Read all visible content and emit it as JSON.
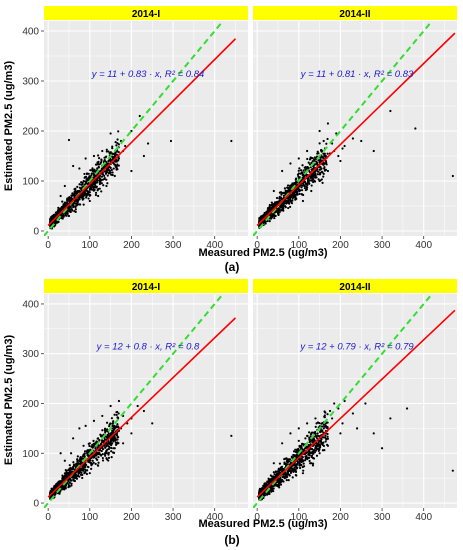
{
  "figure": {
    "panels": [
      {
        "label": "(a)",
        "xlabel": "Measured PM2.5 (ug/m3)",
        "ylabel": "Estimated PM2.5 (ug/m3)",
        "facets": [
          {
            "strip": "2014-I",
            "equation": "y = 11 + 0.83 · x,  R² = 0.84"
          },
          {
            "strip": "2014-II",
            "equation": "y = 11 + 0.81 · x,  R² = 0.83"
          }
        ]
      },
      {
        "label": "(b)",
        "xlabel": "Measured PM2.5 (ug/m3)",
        "ylabel": "Estimated PM2.5 (ug/m3)",
        "facets": [
          {
            "strip": "2014-I",
            "equation": "y = 12 + 0.8 · x,  R² = 0.8"
          },
          {
            "strip": "2014-II",
            "equation": "y = 12 + 0.79 · x,  R² = 0.79"
          }
        ]
      }
    ]
  },
  "colors": {
    "panel_bg": "#ebebeb",
    "grid": "#ffffff",
    "strip_bg": "#ffff00",
    "points": "#000000",
    "fit_line": "#ff0000",
    "identity_line": "#33dd33",
    "equation_text": "#1a1ad0"
  },
  "chart_data": [
    {
      "type": "scatter",
      "panel": "(a)",
      "facet": "2014-I",
      "xlabel": "Measured PM2.5 (ug/m3)",
      "ylabel": "Estimated PM2.5 (ug/m3)",
      "xlim": [
        -10,
        480
      ],
      "ylim": [
        -10,
        420
      ],
      "xticks": [
        0,
        100,
        200,
        300,
        400
      ],
      "yticks": [
        0,
        100,
        200,
        300,
        400
      ],
      "fit": {
        "intercept": 11,
        "slope": 0.83,
        "r2": 0.84,
        "x_range": [
          0,
          450
        ]
      },
      "identity_line": true,
      "points": [
        [
          20,
          22
        ],
        [
          30,
          35
        ],
        [
          45,
          40
        ],
        [
          55,
          58
        ],
        [
          60,
          48
        ],
        [
          70,
          75
        ],
        [
          80,
          70
        ],
        [
          90,
          82
        ],
        [
          100,
          92
        ],
        [
          110,
          100
        ],
        [
          120,
          112
        ],
        [
          130,
          118
        ],
        [
          140,
          125
        ],
        [
          150,
          140
        ],
        [
          160,
          150
        ],
        [
          170,
          145
        ],
        [
          180,
          160
        ],
        [
          60,
          130
        ],
        [
          75,
          125
        ],
        [
          90,
          145
        ],
        [
          110,
          150
        ],
        [
          130,
          160
        ],
        [
          150,
          195
        ],
        [
          200,
          200
        ],
        [
          220,
          230
        ],
        [
          240,
          175
        ],
        [
          175,
          180
        ],
        [
          50,
          182
        ],
        [
          295,
          180
        ],
        [
          440,
          180
        ],
        [
          30,
          70
        ],
        [
          40,
          90
        ],
        [
          100,
          60
        ],
        [
          120,
          70
        ],
        [
          140,
          90
        ],
        [
          160,
          110
        ],
        [
          200,
          120
        ],
        [
          230,
          150
        ],
        [
          15,
          10
        ],
        [
          25,
          18
        ],
        [
          35,
          25
        ],
        [
          50,
          30
        ],
        [
          65,
          55
        ],
        [
          85,
          65
        ],
        [
          95,
          105
        ],
        [
          105,
          115
        ],
        [
          125,
          105
        ],
        [
          145,
          135
        ],
        [
          165,
          130
        ],
        [
          185,
          170
        ]
      ],
      "grid": true
    },
    {
      "type": "scatter",
      "panel": "(a)",
      "facet": "2014-II",
      "xlabel": "Measured PM2.5 (ug/m3)",
      "ylabel": "Estimated PM2.5 (ug/m3)",
      "xlim": [
        -10,
        480
      ],
      "ylim": [
        -10,
        420
      ],
      "xticks": [
        0,
        100,
        200,
        300,
        400
      ],
      "yticks": [
        0,
        100,
        200,
        300,
        400
      ],
      "fit": {
        "intercept": 11,
        "slope": 0.81,
        "r2": 0.83,
        "x_range": [
          0,
          475
        ]
      },
      "identity_line": true,
      "points": [
        [
          20,
          25
        ],
        [
          30,
          30
        ],
        [
          45,
          42
        ],
        [
          55,
          50
        ],
        [
          65,
          60
        ],
        [
          75,
          68
        ],
        [
          85,
          80
        ],
        [
          95,
          90
        ],
        [
          105,
          95
        ],
        [
          115,
          105
        ],
        [
          125,
          110
        ],
        [
          135,
          120
        ],
        [
          145,
          130
        ],
        [
          155,
          140
        ],
        [
          165,
          150
        ],
        [
          175,
          155
        ],
        [
          185,
          160
        ],
        [
          195,
          150
        ],
        [
          210,
          170
        ],
        [
          230,
          185
        ],
        [
          250,
          180
        ],
        [
          280,
          160
        ],
        [
          320,
          240
        ],
        [
          380,
          205
        ],
        [
          470,
          110
        ],
        [
          150,
          200
        ],
        [
          170,
          215
        ],
        [
          190,
          195
        ],
        [
          60,
          120
        ],
        [
          80,
          135
        ],
        [
          100,
          145
        ],
        [
          120,
          160
        ],
        [
          40,
          80
        ],
        [
          110,
          60
        ],
        [
          130,
          80
        ],
        [
          150,
          100
        ],
        [
          170,
          120
        ],
        [
          200,
          140
        ],
        [
          15,
          12
        ],
        [
          25,
          20
        ],
        [
          35,
          28
        ],
        [
          50,
          35
        ],
        [
          70,
          55
        ],
        [
          90,
          70
        ],
        [
          100,
          115
        ],
        [
          120,
          125
        ],
        [
          140,
          115
        ],
        [
          160,
          145
        ],
        [
          180,
          175
        ],
        [
          205,
          165
        ]
      ],
      "grid": true
    },
    {
      "type": "scatter",
      "panel": "(b)",
      "facet": "2014-I",
      "xlabel": "Measured PM2.5 (ug/m3)",
      "ylabel": "Estimated PM2.5 (ug/m3)",
      "xlim": [
        -10,
        480
      ],
      "ylim": [
        -10,
        420
      ],
      "xticks": [
        0,
        100,
        200,
        300,
        400
      ],
      "yticks": [
        0,
        100,
        200,
        300,
        400
      ],
      "fit": {
        "intercept": 12,
        "slope": 0.8,
        "r2": 0.8,
        "x_range": [
          0,
          450
        ]
      },
      "identity_line": true,
      "points": [
        [
          20,
          25
        ],
        [
          30,
          32
        ],
        [
          45,
          40
        ],
        [
          55,
          55
        ],
        [
          65,
          62
        ],
        [
          75,
          70
        ],
        [
          85,
          78
        ],
        [
          95,
          88
        ],
        [
          105,
          95
        ],
        [
          115,
          100
        ],
        [
          125,
          110
        ],
        [
          135,
          115
        ],
        [
          145,
          125
        ],
        [
          155,
          135
        ],
        [
          165,
          140
        ],
        [
          175,
          150
        ],
        [
          190,
          160
        ],
        [
          200,
          170
        ],
        [
          215,
          195
        ],
        [
          230,
          185
        ],
        [
          250,
          160
        ],
        [
          440,
          135
        ],
        [
          60,
          130
        ],
        [
          75,
          150
        ],
        [
          90,
          155
        ],
        [
          110,
          165
        ],
        [
          130,
          175
        ],
        [
          150,
          195
        ],
        [
          170,
          205
        ],
        [
          40,
          85
        ],
        [
          30,
          100
        ],
        [
          100,
          60
        ],
        [
          120,
          75
        ],
        [
          140,
          90
        ],
        [
          160,
          110
        ],
        [
          180,
          120
        ],
        [
          15,
          12
        ],
        [
          25,
          20
        ],
        [
          35,
          28
        ],
        [
          50,
          35
        ],
        [
          70,
          55
        ],
        [
          90,
          65
        ],
        [
          100,
          120
        ],
        [
          120,
          130
        ],
        [
          140,
          105
        ],
        [
          160,
          150
        ],
        [
          180,
          175
        ],
        [
          200,
          140
        ],
        [
          55,
          100
        ],
        [
          85,
          115
        ]
      ],
      "grid": true
    },
    {
      "type": "scatter",
      "panel": "(b)",
      "facet": "2014-II",
      "xlabel": "Measured PM2.5 (ug/m3)",
      "ylabel": "Estimated PM2.5 (ug/m3)",
      "xlim": [
        -10,
        480
      ],
      "ylim": [
        -10,
        420
      ],
      "xticks": [
        0,
        100,
        200,
        300,
        400
      ],
      "yticks": [
        0,
        100,
        200,
        300,
        400
      ],
      "fit": {
        "intercept": 12,
        "slope": 0.79,
        "r2": 0.79,
        "x_range": [
          0,
          475
        ]
      },
      "identity_line": true,
      "points": [
        [
          20,
          22
        ],
        [
          30,
          30
        ],
        [
          45,
          42
        ],
        [
          55,
          52
        ],
        [
          65,
          60
        ],
        [
          75,
          70
        ],
        [
          85,
          80
        ],
        [
          95,
          88
        ],
        [
          105,
          98
        ],
        [
          115,
          105
        ],
        [
          125,
          115
        ],
        [
          135,
          120
        ],
        [
          145,
          135
        ],
        [
          155,
          145
        ],
        [
          165,
          160
        ],
        [
          175,
          185
        ],
        [
          185,
          200
        ],
        [
          195,
          190
        ],
        [
          210,
          205
        ],
        [
          230,
          180
        ],
        [
          260,
          200
        ],
        [
          300,
          110
        ],
        [
          320,
          170
        ],
        [
          360,
          190
        ],
        [
          470,
          65
        ],
        [
          60,
          120
        ],
        [
          80,
          140
        ],
        [
          100,
          150
        ],
        [
          120,
          160
        ],
        [
          140,
          170
        ],
        [
          40,
          80
        ],
        [
          110,
          60
        ],
        [
          130,
          80
        ],
        [
          150,
          100
        ],
        [
          170,
          115
        ],
        [
          200,
          140
        ],
        [
          15,
          10
        ],
        [
          25,
          18
        ],
        [
          35,
          26
        ],
        [
          50,
          34
        ],
        [
          70,
          55
        ],
        [
          90,
          68
        ],
        [
          100,
          125
        ],
        [
          120,
          135
        ],
        [
          140,
          110
        ],
        [
          160,
          150
        ],
        [
          180,
          170
        ],
        [
          205,
          160
        ],
        [
          240,
          150
        ],
        [
          280,
          140
        ]
      ],
      "grid": true
    }
  ]
}
